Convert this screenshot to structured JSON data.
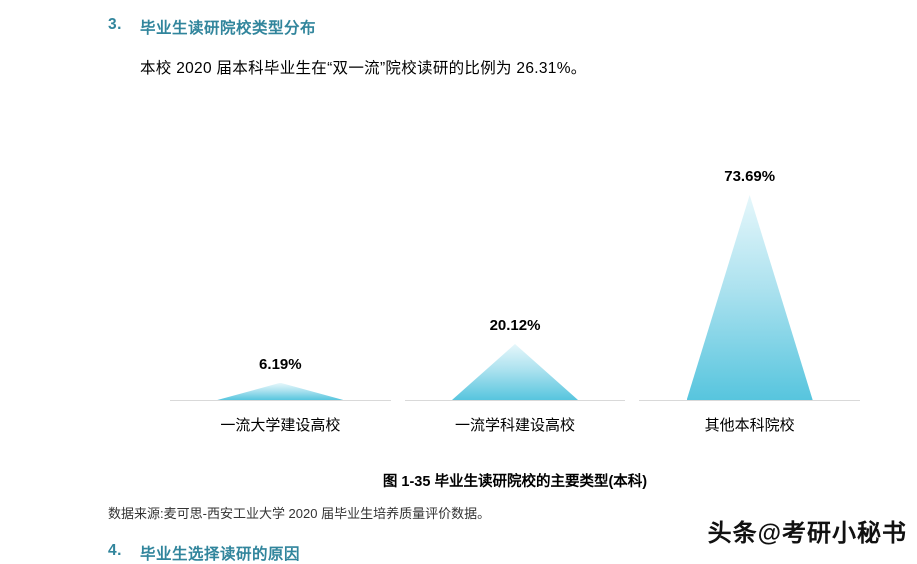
{
  "page": {
    "section_heading": {
      "number": "3.",
      "title": "毕业生读研院校类型分布"
    },
    "paragraph": "本校 2020 届本科毕业生在“双一流”院校读研的比例为 26.31%。",
    "figure_caption": "图 1-35 毕业生读研院校的主要类型(本科)",
    "data_source": "数据来源:麦可思-西安工业大学 2020 届毕业生培养质量评价数据。",
    "next_section": {
      "number": "4.",
      "title": "毕业生选择读研的原因"
    },
    "watermark": "头条@考研小秘书"
  },
  "colors": {
    "heading_teal": "#31859C",
    "triangle_top": "#E6F7FB",
    "triangle_bottom": "#57C5DE",
    "baseline_gray": "#D9D9D9"
  },
  "chart_data": {
    "type": "bar",
    "shape": "triangle",
    "categories": [
      "一流大学建设高校",
      "一流学科建设高校",
      "其他本科院校"
    ],
    "values": [
      6.19,
      20.12,
      73.69
    ],
    "value_labels": [
      "6.19%",
      "20.12%",
      "73.69%"
    ],
    "title": "图 1-35 毕业生读研院校的主要类型(本科)",
    "xlabel": "",
    "ylabel": "",
    "ylim": [
      0,
      80
    ],
    "grid": false,
    "legend": false
  }
}
